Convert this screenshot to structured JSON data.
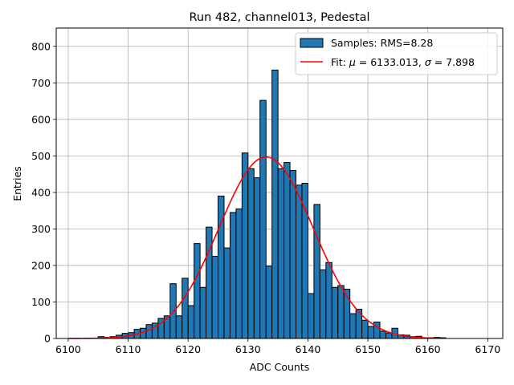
{
  "chart_data": {
    "type": "bar",
    "title": "Run 482, channel013, Pedestal",
    "xlabel": "ADC Counts",
    "ylabel": "Entries",
    "xlim": [
      6098,
      6172.5
    ],
    "ylim": [
      0,
      850
    ],
    "grid": true,
    "legend_position": "top-right",
    "x_ticks": [
      6100,
      6110,
      6120,
      6130,
      6140,
      6150,
      6160,
      6170
    ],
    "y_ticks": [
      0,
      100,
      200,
      300,
      400,
      500,
      600,
      700,
      800
    ],
    "bin_width": 1,
    "colors": {
      "bars": "#1f77b4",
      "bar_edge": "#000000",
      "fit": "#ff0000",
      "grid": "#b0b0b0"
    },
    "series": [
      {
        "name": "Samples: RMS=8.28",
        "kind": "histogram",
        "bin_left_edges": [
          6103,
          6104,
          6105,
          6106,
          6107,
          6108,
          6109,
          6110,
          6111,
          6112,
          6113,
          6114,
          6115,
          6116,
          6117,
          6118,
          6119,
          6120,
          6121,
          6122,
          6123,
          6124,
          6125,
          6126,
          6127,
          6128,
          6129,
          6130,
          6131,
          6132,
          6133,
          6134,
          6135,
          6136,
          6137,
          6138,
          6139,
          6140,
          6141,
          6142,
          6143,
          6144,
          6145,
          6146,
          6147,
          6148,
          6149,
          6150,
          6151,
          6152,
          6153,
          6154,
          6155,
          6156,
          6157,
          6158,
          6159,
          6160,
          6161,
          6162
        ],
        "values": [
          1,
          1,
          5,
          3,
          5,
          9,
          14,
          16,
          25,
          28,
          38,
          42,
          55,
          62,
          150,
          62,
          165,
          90,
          260,
          140,
          305,
          225,
          390,
          248,
          345,
          355,
          508,
          465,
          440,
          652,
          198,
          735,
          465,
          482,
          460,
          420,
          425,
          123,
          367,
          188,
          208,
          140,
          145,
          135,
          68,
          80,
          50,
          33,
          45,
          20,
          15,
          28,
          10,
          9,
          5,
          6,
          2,
          2,
          3,
          2
        ]
      },
      {
        "name": "Fit: μ = 6133.013, σ = 7.898",
        "kind": "gaussian",
        "mu": 6133.013,
        "sigma": 7.898,
        "amplitude": 497,
        "x_range": [
          6100,
          6162
        ]
      }
    ],
    "legend": [
      {
        "label_text": "Samples: RMS=8.28",
        "style": "patch"
      },
      {
        "prefix": "Fit: ",
        "mu_symbol": "μ",
        "mu_text": " = 6133.013, ",
        "sigma_symbol": "σ",
        "sigma_text": " = 7.898",
        "style": "line"
      }
    ]
  }
}
